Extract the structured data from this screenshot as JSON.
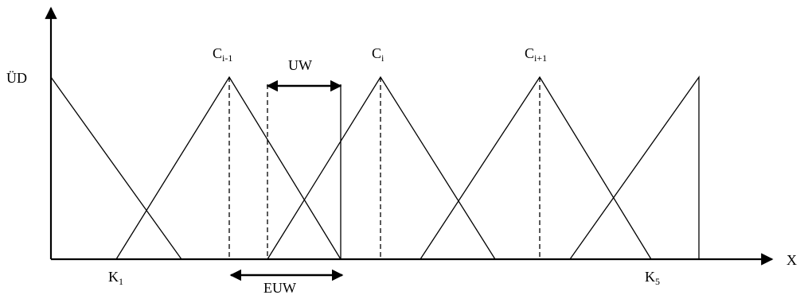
{
  "axes": {
    "y_label": "ÜD",
    "x_label": "X"
  },
  "labels": {
    "c_prev": {
      "base": "C",
      "sub": "i-1"
    },
    "c_curr": {
      "base": "C",
      "sub": "i"
    },
    "c_next": {
      "base": "C",
      "sub": "i+1"
    },
    "k_first": {
      "base": "K",
      "sub": "1"
    },
    "k_last": {
      "base": "K",
      "sub": "5"
    },
    "uw": "UW",
    "euw": "EUW"
  },
  "colors": {
    "stroke": "#000000",
    "background": "#ffffff"
  }
}
